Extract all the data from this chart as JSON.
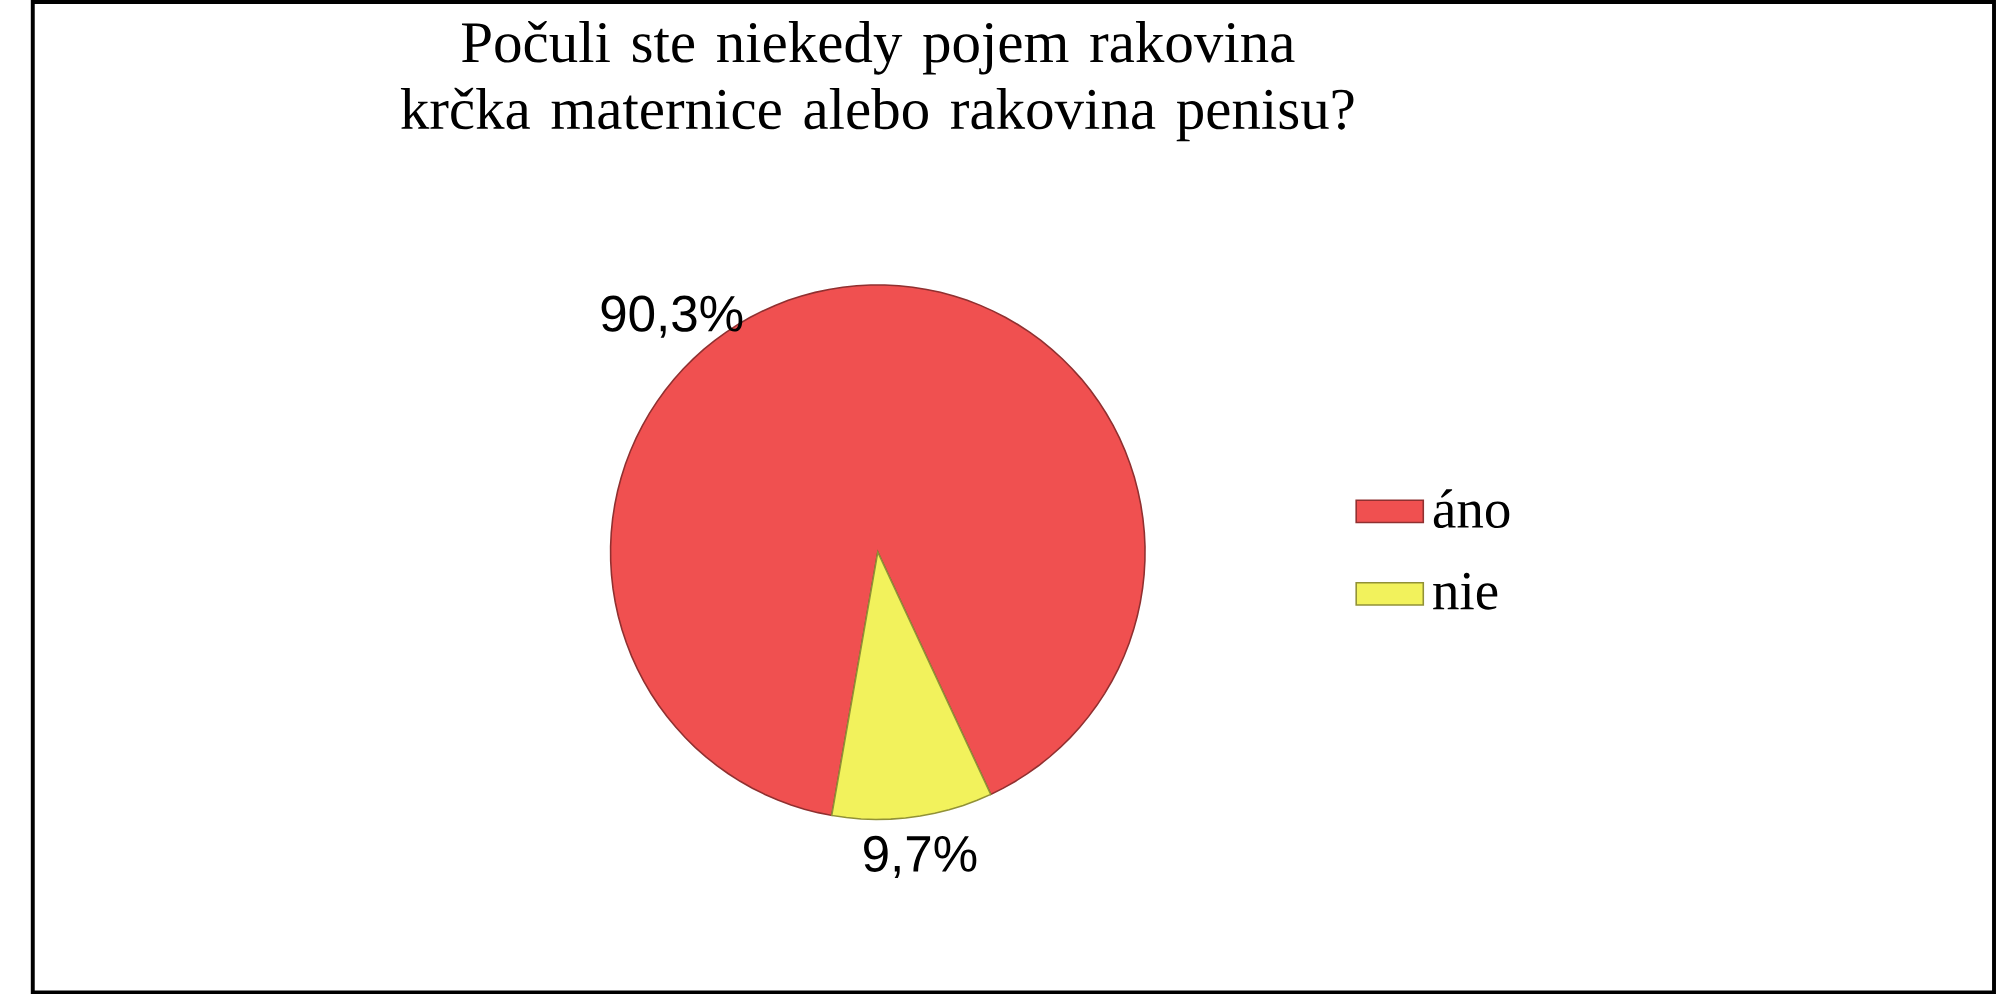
{
  "chart_data": {
    "type": "pie",
    "title": "Počuli ste niekedy pojem rakovina krčka maternice alebo rakovina penisu?",
    "categories": [
      "áno",
      "nie"
    ],
    "values": [
      90.3,
      9.7
    ],
    "colors": [
      "#f05050",
      "#f2f25c"
    ],
    "value_labels": [
      "90,3%",
      "9,7%"
    ],
    "legend": "right"
  }
}
